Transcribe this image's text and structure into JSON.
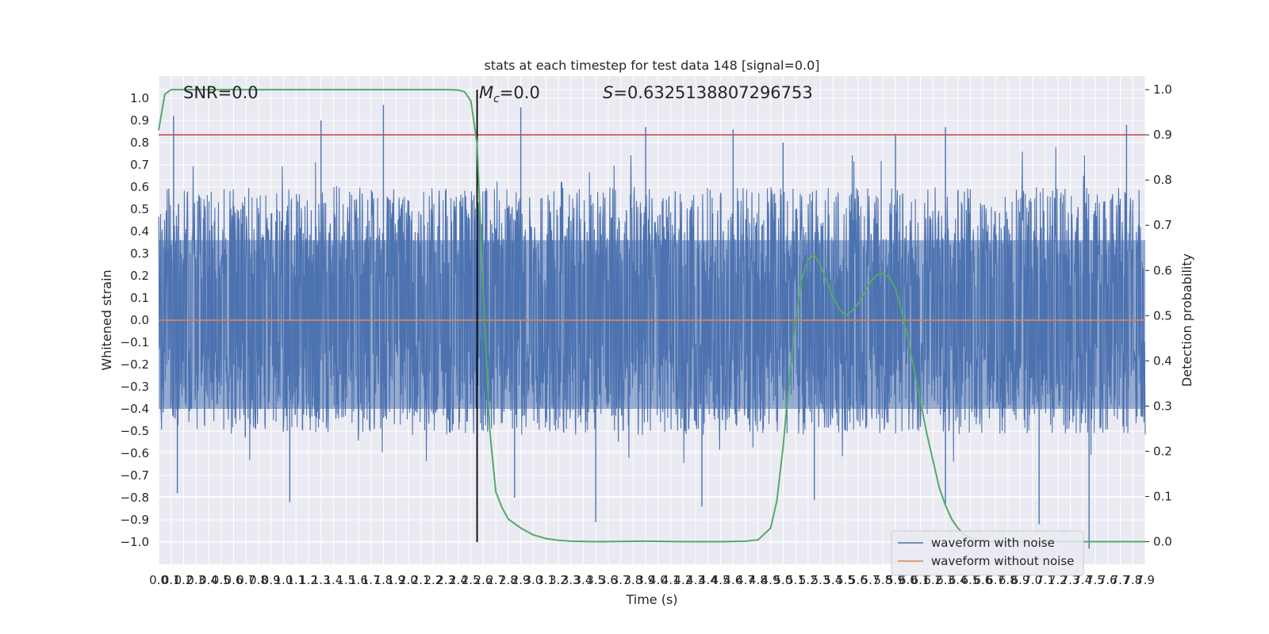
{
  "chart_data": {
    "type": "line",
    "title": "stats at each timestep for test data 148 [signal=0.0]",
    "xlabel": "Time (s)",
    "ylabel_left": "Whitened strain",
    "ylabel_right": "Detection probability",
    "xlim": [
      0.0,
      7.9
    ],
    "ylim_left": [
      -1.1,
      1.1
    ],
    "ylim_right": [
      -0.05,
      1.03
    ],
    "grid": true,
    "legend_position": "lower-right",
    "x_tick_labels": [
      "0.0",
      "0.1",
      "0.2",
      "0.3",
      "0.4",
      "0.5",
      "0.6",
      "0.7",
      "0.8",
      "0.9",
      "1.0",
      "1.1",
      "1.2",
      "1.3",
      "1.4",
      "1.5",
      "1.6",
      "1.7",
      "1.8",
      "1.9",
      "2.0",
      "2.1",
      "2.2",
      "2.3",
      "2.4",
      "2.5",
      "2.6",
      "2.7",
      "2.8",
      "2.9",
      "3.0",
      "3.1",
      "3.2",
      "3.3",
      "3.4",
      "3.5",
      "3.6",
      "3.7",
      "3.8",
      "3.9",
      "4.0",
      "4.1",
      "4.2",
      "4.3",
      "4.4",
      "4.5",
      "4.6",
      "4.7",
      "4.8",
      "4.9",
      "5.0",
      "5.1",
      "5.2",
      "5.3",
      "5.4",
      "5.5",
      "5.6",
      "5.7",
      "5.8",
      "5.9",
      "6.0",
      "6.1",
      "6.2",
      "6.3",
      "6.4",
      "6.5",
      "6.6",
      "6.7",
      "6.8",
      "6.9",
      "7.0",
      "7.1",
      "7.2",
      "7.3",
      "7.4",
      "7.5",
      "7.6",
      "7.7",
      "7.8",
      "7.9"
    ],
    "y_tick_labels_left": [
      "1.0",
      "0.9",
      "0.8",
      "0.7",
      "0.6",
      "0.5",
      "0.4",
      "0.3",
      "0.2",
      "0.1",
      "0.0",
      "-0.1",
      "-0.2",
      "-0.3",
      "-0.4",
      "-0.5",
      "-0.6",
      "-0.7",
      "-0.8",
      "-0.9",
      "-1.0"
    ],
    "y_tick_labels_right": [
      "1.0",
      "0.9",
      "0.8",
      "0.7",
      "0.6",
      "0.5",
      "0.4",
      "0.3",
      "0.2",
      "0.1",
      "0.0"
    ],
    "annotations": {
      "snr": "SNR=0.0",
      "mc_symbol": "M",
      "mc_sub": "c",
      "mc_value": "=0.0",
      "s_symbol": "S",
      "s_value": "=0.6325138807296753"
    },
    "series": [
      {
        "name": "waveform with noise",
        "color": "#4c72b0",
        "axis": "left",
        "description_values": {
          "typical_envelope": [
            -0.45,
            0.6
          ],
          "selected_peaks": [
            [
              0.12,
              0.92
            ],
            [
              1.3,
              0.9
            ],
            [
              1.8,
              0.97
            ],
            [
              2.9,
              0.96
            ],
            [
              3.9,
              0.87
            ],
            [
              4.6,
              0.86
            ],
            [
              5.0,
              0.8
            ],
            [
              5.9,
              0.84
            ],
            [
              6.3,
              0.87
            ],
            [
              7.75,
              0.88
            ],
            [
              0.15,
              -0.78
            ],
            [
              1.05,
              -0.82
            ],
            [
              2.85,
              -0.8
            ],
            [
              3.5,
              -0.91
            ],
            [
              4.35,
              -0.84
            ],
            [
              5.25,
              -0.81
            ],
            [
              6.3,
              -0.83
            ],
            [
              7.05,
              -0.92
            ],
            [
              7.45,
              -1.03
            ]
          ]
        }
      },
      {
        "name": "waveform without noise",
        "color": "#dd8452",
        "axis": "left",
        "x": [
          0.0,
          7.9
        ],
        "y": [
          0.0,
          0.0
        ]
      },
      {
        "name": "detection probability",
        "color": "#55a868",
        "axis": "right",
        "x": [
          0.0,
          0.05,
          0.1,
          0.2,
          0.5,
          1.0,
          1.5,
          2.0,
          2.3,
          2.4,
          2.45,
          2.5,
          2.55,
          2.6,
          2.65,
          2.7,
          2.75,
          2.8,
          2.9,
          3.0,
          3.1,
          3.2,
          3.3,
          3.5,
          3.9,
          4.2,
          4.5,
          4.7,
          4.8,
          4.9,
          4.95,
          5.0,
          5.05,
          5.1,
          5.15,
          5.2,
          5.25,
          5.3,
          5.35,
          5.4,
          5.45,
          5.5,
          5.55,
          5.6,
          5.65,
          5.7,
          5.75,
          5.8,
          5.85,
          5.9,
          5.95,
          6.0,
          6.05,
          6.1,
          6.15,
          6.2,
          6.25,
          6.3,
          6.35,
          6.4,
          6.45,
          6.5,
          6.55,
          6.6,
          6.65,
          6.7,
          6.75,
          6.8,
          6.85,
          6.9,
          7.0,
          7.5,
          7.9
        ],
        "y": [
          0.91,
          0.99,
          1.0,
          1.0,
          1.0,
          1.0,
          1.0,
          1.0,
          1.0,
          0.999,
          0.995,
          0.975,
          0.88,
          0.55,
          0.25,
          0.11,
          0.075,
          0.05,
          0.03,
          0.015,
          0.007,
          0.003,
          0.001,
          0.0,
          0.001,
          0.0,
          0.0,
          0.001,
          0.004,
          0.03,
          0.09,
          0.21,
          0.36,
          0.49,
          0.58,
          0.625,
          0.635,
          0.61,
          0.575,
          0.54,
          0.515,
          0.5,
          0.51,
          0.525,
          0.55,
          0.575,
          0.59,
          0.593,
          0.585,
          0.56,
          0.51,
          0.45,
          0.38,
          0.31,
          0.24,
          0.18,
          0.12,
          0.08,
          0.05,
          0.03,
          0.015,
          0.008,
          0.004,
          0.002,
          0.001,
          0.0,
          0.0,
          0.0,
          0.0,
          0.0,
          0.0,
          0.0,
          0.0
        ]
      }
    ],
    "reference_lines": [
      {
        "kind": "horizontal",
        "axis": "right",
        "y": 0.9,
        "color": "#c44e52"
      },
      {
        "kind": "vertical",
        "x": 2.55,
        "y_range": [
          -0.45,
          1.0
        ],
        "color": "#000000"
      }
    ]
  }
}
